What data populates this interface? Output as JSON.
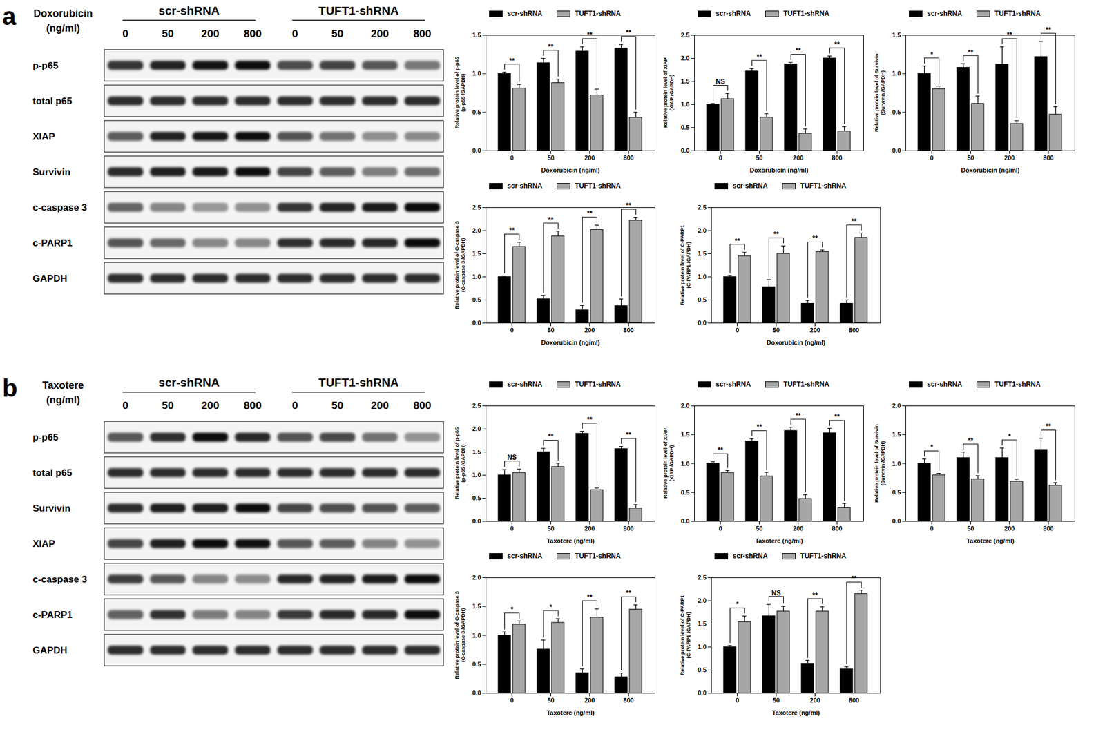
{
  "blots": [
    {
      "panel": "a",
      "treatment": "Doxorubicin",
      "unit": "(ng/ml)",
      "groups": [
        "scr-shRNA",
        "TUFT1-shRNA"
      ],
      "doses": [
        "0",
        "50",
        "200",
        "800"
      ],
      "rows": [
        "p-p65",
        "total p65",
        "XIAP",
        "Survivin",
        "c-caspase 3",
        "c-PARP1",
        "GAPDH"
      ]
    },
    {
      "panel": "b",
      "treatment": "Taxotere",
      "unit": "(ng/ml)",
      "groups": [
        "scr-shRNA",
        "TUFT1-shRNA"
      ],
      "doses": [
        "0",
        "50",
        "200",
        "800"
      ],
      "rows": [
        "p-p65",
        "total p65",
        "Survivin",
        "XIAP",
        "c-caspase 3",
        "c-PARP1",
        "GAPDH"
      ]
    }
  ],
  "chart_data": [
    {
      "type": "bar",
      "xlabel": "Doxorubicin (ng/ml)",
      "ylabel": [
        "Relative protein level of p-p65",
        "(p-p65 /GAPDH)"
      ],
      "categories": [
        "0",
        "50",
        "200",
        "800"
      ],
      "ylim": [
        0,
        1.5
      ],
      "yticks": [
        {
          "value": 0,
          "label": "0.0"
        },
        0.5,
        {
          "value": 1,
          "label": "1.0"
        },
        1.5
      ],
      "legend": "top",
      "series": [
        {
          "name": "scr-shRNA",
          "color": "#000000",
          "values": [
            1.0,
            1.14,
            1.29,
            1.33
          ],
          "errors": [
            0.02,
            0.06,
            0.06,
            0.05
          ]
        },
        {
          "name": "TUFT1-shRNA",
          "color": "#a6a6a6",
          "values": [
            0.81,
            0.88,
            0.72,
            0.43
          ],
          "errors": [
            0.05,
            0.05,
            0.08,
            0.07
          ]
        }
      ],
      "annotations": [
        "**",
        "**",
        "**",
        "**"
      ]
    },
    {
      "type": "bar",
      "xlabel": "Doxorubicin (ng/ml)",
      "ylabel": [
        "Relative protein level of XIAP",
        "(XIAP /GAPDH)"
      ],
      "categories": [
        "0",
        "50",
        "200",
        "800"
      ],
      "ylim": [
        0,
        2.5
      ],
      "yticks": [
        {
          "value": 0,
          "label": "0.0"
        },
        0.5,
        {
          "value": 1,
          "label": "1.0"
        },
        1.5,
        {
          "value": 2,
          "label": "2.0"
        },
        2.5
      ],
      "legend": "top",
      "series": [
        {
          "name": "scr-shRNA",
          "color": "#000000",
          "values": [
            1.0,
            1.72,
            1.87,
            2.0
          ],
          "errors": [
            0.02,
            0.06,
            0.04,
            0.05
          ]
        },
        {
          "name": "TUFT1-shRNA",
          "color": "#a6a6a6",
          "values": [
            1.12,
            0.72,
            0.37,
            0.42
          ],
          "errors": [
            0.12,
            0.08,
            0.1,
            0.1
          ]
        }
      ],
      "annotations": [
        "NS",
        "**",
        "**",
        "**"
      ]
    },
    {
      "type": "bar",
      "xlabel": "Doxorubicin (ng/ml)",
      "ylabel": [
        "Relative protein level of Survivin",
        "(Survivin /GAPDH)"
      ],
      "categories": [
        "0",
        "50",
        "200",
        "800"
      ],
      "ylim": [
        0,
        1.5
      ],
      "yticks": [
        {
          "value": 0,
          "label": "0.0"
        },
        0.5,
        {
          "value": 1,
          "label": "1.0"
        },
        1.5
      ],
      "legend": "top",
      "series": [
        {
          "name": "scr-shRNA",
          "color": "#000000",
          "values": [
            1.0,
            1.08,
            1.12,
            1.22
          ],
          "errors": [
            0.1,
            0.05,
            0.23,
            0.2
          ]
        },
        {
          "name": "TUFT1-shRNA",
          "color": "#a6a6a6",
          "values": [
            0.8,
            0.61,
            0.35,
            0.47
          ],
          "errors": [
            0.04,
            0.1,
            0.04,
            0.1
          ]
        }
      ],
      "annotations": [
        "*",
        "**",
        "**",
        "**"
      ]
    },
    {
      "type": "bar",
      "xlabel": "Doxorubicin (ng/ml)",
      "ylabel": [
        "Relative protein level of C-caspase 3",
        "(C-caspase 3 /GAPDH)"
      ],
      "categories": [
        "0",
        "50",
        "200",
        "800"
      ],
      "ylim": [
        0,
        2.5
      ],
      "yticks": [
        {
          "value": 0,
          "label": "0.0"
        },
        0.5,
        {
          "value": 1,
          "label": "1.0"
        },
        1.5,
        {
          "value": 2,
          "label": "2.0"
        },
        2.5
      ],
      "legend": "top",
      "series": [
        {
          "name": "scr-shRNA",
          "color": "#000000",
          "values": [
            1.0,
            0.52,
            0.28,
            0.37
          ],
          "errors": [
            0.02,
            0.08,
            0.1,
            0.15
          ]
        },
        {
          "name": "TUFT1-shRNA",
          "color": "#a6a6a6",
          "values": [
            1.65,
            1.88,
            2.02,
            2.22
          ],
          "errors": [
            0.1,
            0.11,
            0.1,
            0.07
          ]
        }
      ],
      "annotations": [
        "**",
        "**",
        "**",
        "**"
      ]
    },
    {
      "type": "bar",
      "xlabel": "Doxorubicin (ng/ml)",
      "ylabel": [
        "Relative protein level of C-PARP1",
        "(C-PARP1 /GAPDH)"
      ],
      "categories": [
        "0",
        "50",
        "200",
        "800"
      ],
      "ylim": [
        0,
        2.5
      ],
      "yticks": [
        {
          "value": 0,
          "label": "0.0"
        },
        0.5,
        {
          "value": 1,
          "label": "1.0"
        },
        1.5,
        {
          "value": 2,
          "label": "2.0"
        },
        2.5
      ],
      "legend": "top",
      "series": [
        {
          "name": "scr-shRNA",
          "color": "#000000",
          "values": [
            1.0,
            0.78,
            0.42,
            0.42
          ],
          "errors": [
            0.03,
            0.16,
            0.07,
            0.08
          ]
        },
        {
          "name": "TUFT1-shRNA",
          "color": "#a6a6a6",
          "values": [
            1.45,
            1.5,
            1.54,
            1.85
          ],
          "errors": [
            0.08,
            0.17,
            0.04,
            0.1
          ]
        }
      ],
      "annotations": [
        "**",
        "**",
        "**",
        "**"
      ]
    },
    {
      "type": "bar",
      "xlabel": "Taxotere (ng/ml)",
      "ylabel": [
        "Relative protein level of p-p65",
        "(p-p65 /GAPDH)"
      ],
      "categories": [
        "0",
        "50",
        "200",
        "800"
      ],
      "ylim": [
        0,
        2.5
      ],
      "yticks": [
        {
          "value": 0,
          "label": "0.0"
        },
        0.5,
        {
          "value": 1,
          "label": "1.0"
        },
        1.5,
        {
          "value": 2,
          "label": "2.0"
        },
        2.5
      ],
      "legend": "top",
      "series": [
        {
          "name": "scr-shRNA",
          "color": "#000000",
          "values": [
            1.0,
            1.5,
            1.9,
            1.57
          ],
          "errors": [
            0.12,
            0.08,
            0.05,
            0.05
          ]
        },
        {
          "name": "TUFT1-shRNA",
          "color": "#a6a6a6",
          "values": [
            1.05,
            1.18,
            0.68,
            0.28
          ],
          "errors": [
            0.08,
            0.08,
            0.04,
            0.08
          ]
        }
      ],
      "annotations": [
        "NS",
        "**",
        "**",
        "**"
      ]
    },
    {
      "type": "bar",
      "xlabel": "Taxotere (ng/ml)",
      "ylabel": [
        "Relative protein level of XIAP",
        "(XIAP /GAPDH)"
      ],
      "categories": [
        "0",
        "50",
        "200",
        "800"
      ],
      "ylim": [
        0,
        2.0
      ],
      "yticks": [
        {
          "value": 0,
          "label": "0.0"
        },
        0.5,
        {
          "value": 1,
          "label": "1.0"
        },
        1.5,
        {
          "value": 2,
          "label": "2.0"
        }
      ],
      "legend": "top",
      "series": [
        {
          "name": "scr-shRNA",
          "color": "#000000",
          "values": [
            1.0,
            1.39,
            1.57,
            1.53
          ],
          "errors": [
            0.03,
            0.04,
            0.06,
            0.08
          ]
        },
        {
          "name": "TUFT1-shRNA",
          "color": "#a6a6a6",
          "values": [
            0.84,
            0.78,
            0.39,
            0.24
          ],
          "errors": [
            0.04,
            0.07,
            0.07,
            0.07
          ]
        }
      ],
      "annotations": [
        "**",
        "**",
        "**",
        "**"
      ]
    },
    {
      "type": "bar",
      "xlabel": "Taxotere (ng/ml)",
      "ylabel": [
        "Relative protein level of Survivin",
        "(Survivin /GAPDH)"
      ],
      "categories": [
        "0",
        "50",
        "200",
        "800"
      ],
      "ylim": [
        0,
        2.0
      ],
      "yticks": [
        {
          "value": 0,
          "label": "0.0"
        },
        0.5,
        {
          "value": 1,
          "label": "1.0"
        },
        1.5,
        {
          "value": 2,
          "label": "2.0"
        }
      ],
      "legend": "top",
      "series": [
        {
          "name": "scr-shRNA",
          "color": "#000000",
          "values": [
            1.0,
            1.1,
            1.1,
            1.24
          ],
          "errors": [
            0.08,
            0.1,
            0.17,
            0.2
          ]
        },
        {
          "name": "TUFT1-shRNA",
          "color": "#a6a6a6",
          "values": [
            0.8,
            0.73,
            0.69,
            0.62
          ],
          "errors": [
            0.03,
            0.06,
            0.04,
            0.05
          ]
        }
      ],
      "annotations": [
        "*",
        "**",
        "*",
        "**"
      ]
    },
    {
      "type": "bar",
      "xlabel": "Taxotere (ng/ml)",
      "ylabel": [
        "Relative protein level of C-caspase 3",
        "(C-caspase 3 /GAPDH)"
      ],
      "categories": [
        "0",
        "50",
        "200",
        "800"
      ],
      "ylim": [
        0,
        2.0
      ],
      "yticks": [
        {
          "value": 0,
          "label": "0.0"
        },
        0.5,
        {
          "value": 1,
          "label": "1.0"
        },
        1.5,
        {
          "value": 2,
          "label": "2.0"
        }
      ],
      "legend": "top",
      "series": [
        {
          "name": "scr-shRNA",
          "color": "#000000",
          "values": [
            1.0,
            0.76,
            0.35,
            0.28
          ],
          "errors": [
            0.06,
            0.16,
            0.07,
            0.07
          ]
        },
        {
          "name": "TUFT1-shRNA",
          "color": "#a6a6a6",
          "values": [
            1.19,
            1.22,
            1.31,
            1.45
          ],
          "errors": [
            0.06,
            0.07,
            0.15,
            0.08
          ]
        }
      ],
      "annotations": [
        "*",
        "*",
        "**",
        "**"
      ]
    },
    {
      "type": "bar",
      "xlabel": "Taxotere (ng/ml)",
      "ylabel": [
        "Relative protein level of C-PARP1",
        "(C-PARP1 /GAPDH)"
      ],
      "categories": [
        "0",
        "50",
        "200",
        "800"
      ],
      "ylim": [
        0,
        2.5
      ],
      "yticks": [
        {
          "value": 0,
          "label": "0.0"
        },
        0.5,
        {
          "value": 1,
          "label": "1.0"
        },
        1.5,
        {
          "value": 2,
          "label": "2.0"
        },
        2.5
      ],
      "legend": "top",
      "series": [
        {
          "name": "scr-shRNA",
          "color": "#000000",
          "values": [
            1.0,
            1.67,
            0.64,
            0.52
          ],
          "errors": [
            0.03,
            0.25,
            0.07,
            0.05
          ]
        },
        {
          "name": "TUFT1-shRNA",
          "color": "#a6a6a6",
          "values": [
            1.54,
            1.77,
            1.77,
            2.15
          ],
          "errors": [
            0.13,
            0.11,
            0.1,
            0.08
          ]
        }
      ],
      "annotations": [
        "*",
        "NS",
        "**",
        "**"
      ]
    }
  ]
}
